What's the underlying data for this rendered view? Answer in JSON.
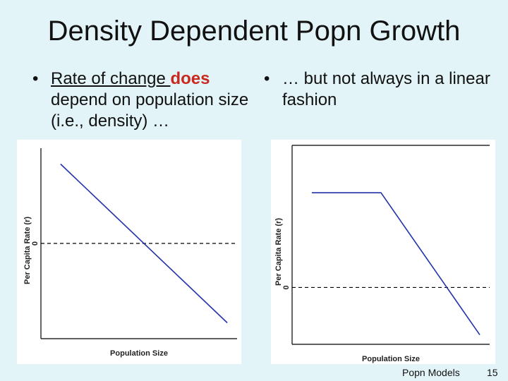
{
  "slide": {
    "title": "Density Dependent Popn Growth",
    "bullet1": {
      "marker": "•",
      "part1": "Rate of change ",
      "emphasis": "does",
      "part2": " depend on population size (i.e., density) …"
    },
    "bullet2": {
      "marker": "•",
      "text": "… but not always in a linear fashion"
    },
    "footer_left": "Popn Models",
    "footer_right": "15",
    "colors": {
      "background": "#e3f4f8",
      "emphasis": "#c8281e",
      "line": "#2233aa"
    }
  },
  "chart_data": [
    {
      "type": "line",
      "xlabel": "Population Size",
      "ylabel": "Per Capita Rate (r)",
      "zero_tick": "0",
      "zero_line": "dashed",
      "x": [
        0.1,
        0.95
      ],
      "series": [
        {
          "values": [
            1.0,
            -1.0
          ]
        }
      ]
    },
    {
      "type": "line",
      "xlabel": "Population Size",
      "ylabel": "Per Capita Rate (r)",
      "zero_tick": "0",
      "zero_line": "dashed",
      "x": [
        0.1,
        0.45,
        0.95
      ],
      "series": [
        {
          "values": [
            1.0,
            1.0,
            -0.5
          ]
        }
      ]
    }
  ]
}
